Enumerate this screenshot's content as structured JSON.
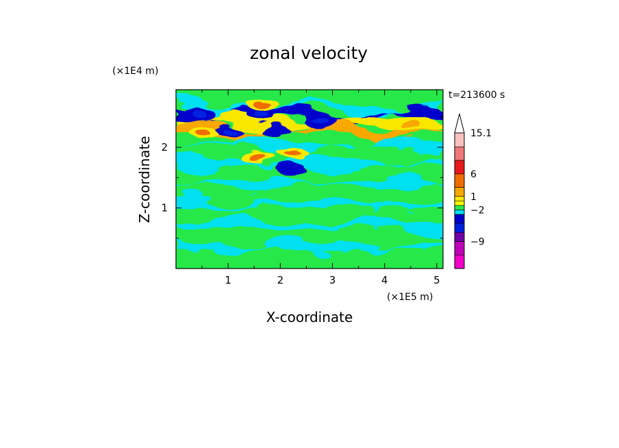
{
  "chart_data": {
    "type": "heatmap",
    "title": "zonal velocity",
    "xlabel": "X-coordinate",
    "ylabel": "Z-coordinate",
    "x_unit": "(×1E5 m)",
    "y_unit": "(×1E4 m)",
    "time_label": "t=213600 s",
    "xlim": [
      0,
      5.12
    ],
    "ylim": [
      0,
      2.95
    ],
    "x_ticks": [
      "1",
      "2",
      "3",
      "4",
      "5"
    ],
    "y_ticks": [
      "1",
      "2"
    ],
    "colorbar": {
      "labels": [
        "15.1",
        "6",
        "1",
        "−2",
        "−9"
      ],
      "label_values": [
        15.1,
        6,
        1,
        -2,
        -9
      ],
      "extend": "max",
      "levels": [
        {
          "value": 12,
          "color": "#f8c0c0"
        },
        {
          "value": 9,
          "color": "#f07878"
        },
        {
          "value": 6,
          "color": "#e81818"
        },
        {
          "value": 3,
          "color": "#f06c00"
        },
        {
          "value": 1,
          "color": "#f8a800"
        },
        {
          "value": 0,
          "color": "#f8e800"
        },
        {
          "value": -1,
          "color": "#ffff00"
        },
        {
          "value": -2,
          "color": "#28e848"
        },
        {
          "value": -3,
          "color": "#00e0f0"
        },
        {
          "value": -5,
          "color": "#0000cc"
        },
        {
          "value": -7,
          "color": "#0020e0"
        },
        {
          "value": -9,
          "color": "#7000a8"
        },
        {
          "value": -12,
          "color": "#c000b8"
        },
        {
          "value": -15,
          "color": "#f000c8"
        }
      ]
    },
    "field": {
      "background_class": "yellow-green banded turbulence",
      "anomalies": [
        {
          "x": 0.42,
          "z": 2.55,
          "value": -6
        },
        {
          "x": 1.08,
          "z": 2.28,
          "value": -6
        },
        {
          "x": 1.6,
          "z": 2.52,
          "value": -6
        },
        {
          "x": 1.92,
          "z": 2.3,
          "value": -5
        },
        {
          "x": 2.22,
          "z": 1.65,
          "value": -5
        },
        {
          "x": 2.82,
          "z": 2.42,
          "value": -6
        },
        {
          "x": 1.63,
          "z": 2.7,
          "value": 4
        },
        {
          "x": 2.22,
          "z": 1.9,
          "value": 4
        },
        {
          "x": 1.58,
          "z": 1.82,
          "value": 3
        },
        {
          "x": 0.55,
          "z": 2.25,
          "value": 3
        },
        {
          "x": 4.5,
          "z": 2.35,
          "value": 2
        }
      ]
    }
  }
}
